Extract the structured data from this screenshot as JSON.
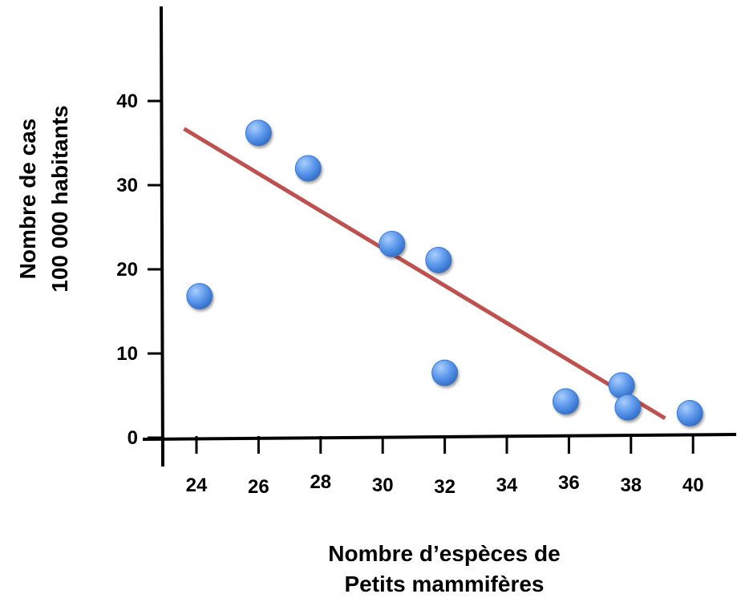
{
  "chart_data": {
    "type": "scatter",
    "xlabel_lines": [
      "Nombre d’espèces de",
      "Petits mammifères"
    ],
    "ylabel_lines": [
      "Nombre de cas",
      "100 000 habitants"
    ],
    "xlim": [
      23,
      41
    ],
    "ylim": [
      0,
      45
    ],
    "x_ticks": [
      24,
      26,
      28,
      30,
      32,
      34,
      36,
      38,
      40
    ],
    "x_tick_labels": [
      "24",
      "26",
      "28",
      "30",
      "32",
      "34",
      "36",
      "38",
      "40"
    ],
    "y_ticks": [
      0,
      10,
      20,
      30,
      40
    ],
    "y_tick_labels": [
      "0",
      "10",
      "20",
      "30",
      "40"
    ],
    "grid": false,
    "series": [
      {
        "points": [
          {
            "x": 24.1,
            "y": 16.8
          },
          {
            "x": 26.0,
            "y": 36.2
          },
          {
            "x": 27.6,
            "y": 32.0
          },
          {
            "x": 30.3,
            "y": 23.0
          },
          {
            "x": 31.8,
            "y": 21.1
          },
          {
            "x": 32.0,
            "y": 7.7
          },
          {
            "x": 35.9,
            "y": 4.3
          },
          {
            "x": 37.7,
            "y": 6.2
          },
          {
            "x": 37.9,
            "y": 3.6
          },
          {
            "x": 39.9,
            "y": 2.9
          }
        ],
        "color": "#4a86e8"
      }
    ],
    "trendline": {
      "points": [
        {
          "x": 23.6,
          "y": 36.7
        },
        {
          "x": 39.1,
          "y": 2.3
        }
      ],
      "color": "#c0504d"
    }
  }
}
